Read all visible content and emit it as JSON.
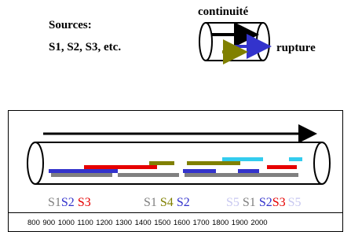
{
  "header": {
    "sources_title": "Sources:",
    "sources_list": "S1, S2, S3, etc."
  },
  "legend": {
    "continuity": "continuité",
    "rupture": "rupture"
  },
  "source_labels": [
    "S1",
    "S2",
    "S3",
    "S1",
    "S4",
    "S2",
    "S5",
    "S1",
    "S2",
    "S3",
    "S5"
  ],
  "years": [
    "800",
    "900",
    "1000",
    "1100",
    "1200",
    "1300",
    "1400",
    "1500",
    "1600",
    "1700",
    "1800",
    "1900",
    "2000"
  ]
}
